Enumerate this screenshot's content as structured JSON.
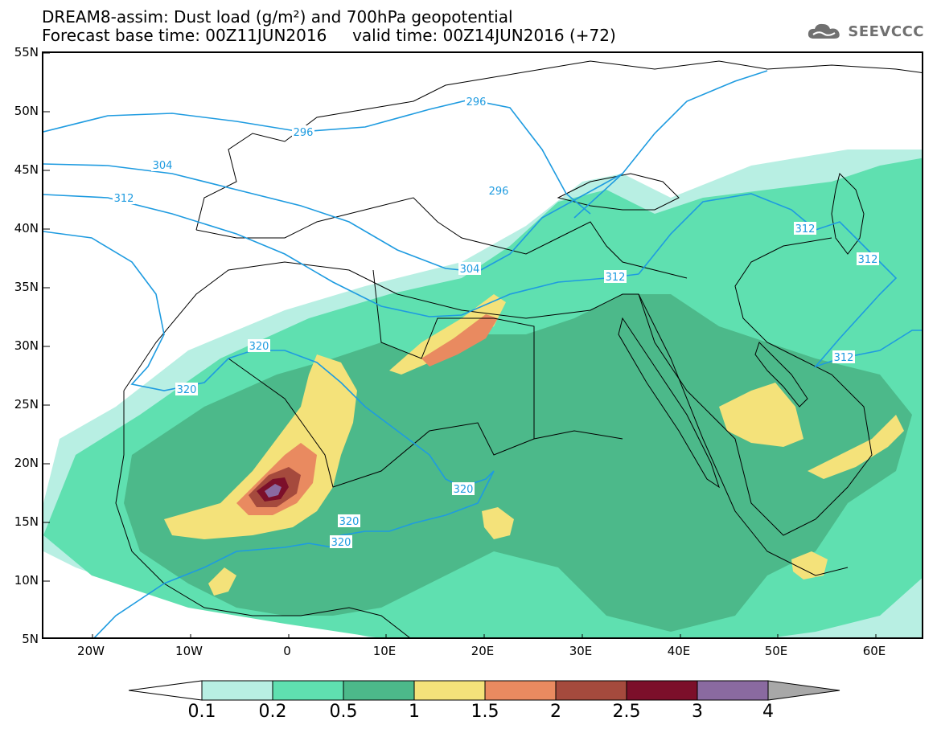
{
  "header": {
    "title_line1": "DREAM8-assim: Dust load (g/m²) and 700hPa geopotential",
    "title_line2": "Forecast base time: 00Z11JUN2016     valid time: 00Z14JUN2016 (+72)",
    "brand": "SEEVCCC",
    "brand_icon": "cloud-logo-icon"
  },
  "map": {
    "lat_labels": [
      "55N",
      "50N",
      "45N",
      "40N",
      "35N",
      "30N",
      "25N",
      "20N",
      "15N",
      "10N",
      "5N"
    ],
    "lon_labels": [
      "20W",
      "10W",
      "0",
      "10E",
      "20E",
      "30E",
      "40E",
      "50E",
      "60E"
    ],
    "lat_range": [
      5,
      55
    ],
    "lon_range": [
      -25,
      65
    ],
    "contour_labels": [
      "296",
      "296",
      "296",
      "304",
      "304",
      "312",
      "312",
      "312",
      "312",
      "312",
      "320",
      "320",
      "320",
      "320",
      "320"
    ],
    "contour_color": "#1e9be0",
    "coastline_color": "#000000"
  },
  "colorbar": {
    "levels": [
      "0.1",
      "0.2",
      "0.5",
      "1",
      "1.5",
      "2",
      "2.5",
      "3",
      "4"
    ],
    "colors": [
      "#b8efe3",
      "#5fe0b0",
      "#4cb98a",
      "#f4e27a",
      "#e98a60",
      "#a54a3d",
      "#7c0f2a",
      "#8a6aa0"
    ],
    "under_color": "#ffffff",
    "over_color": "#a8a8a8"
  }
}
